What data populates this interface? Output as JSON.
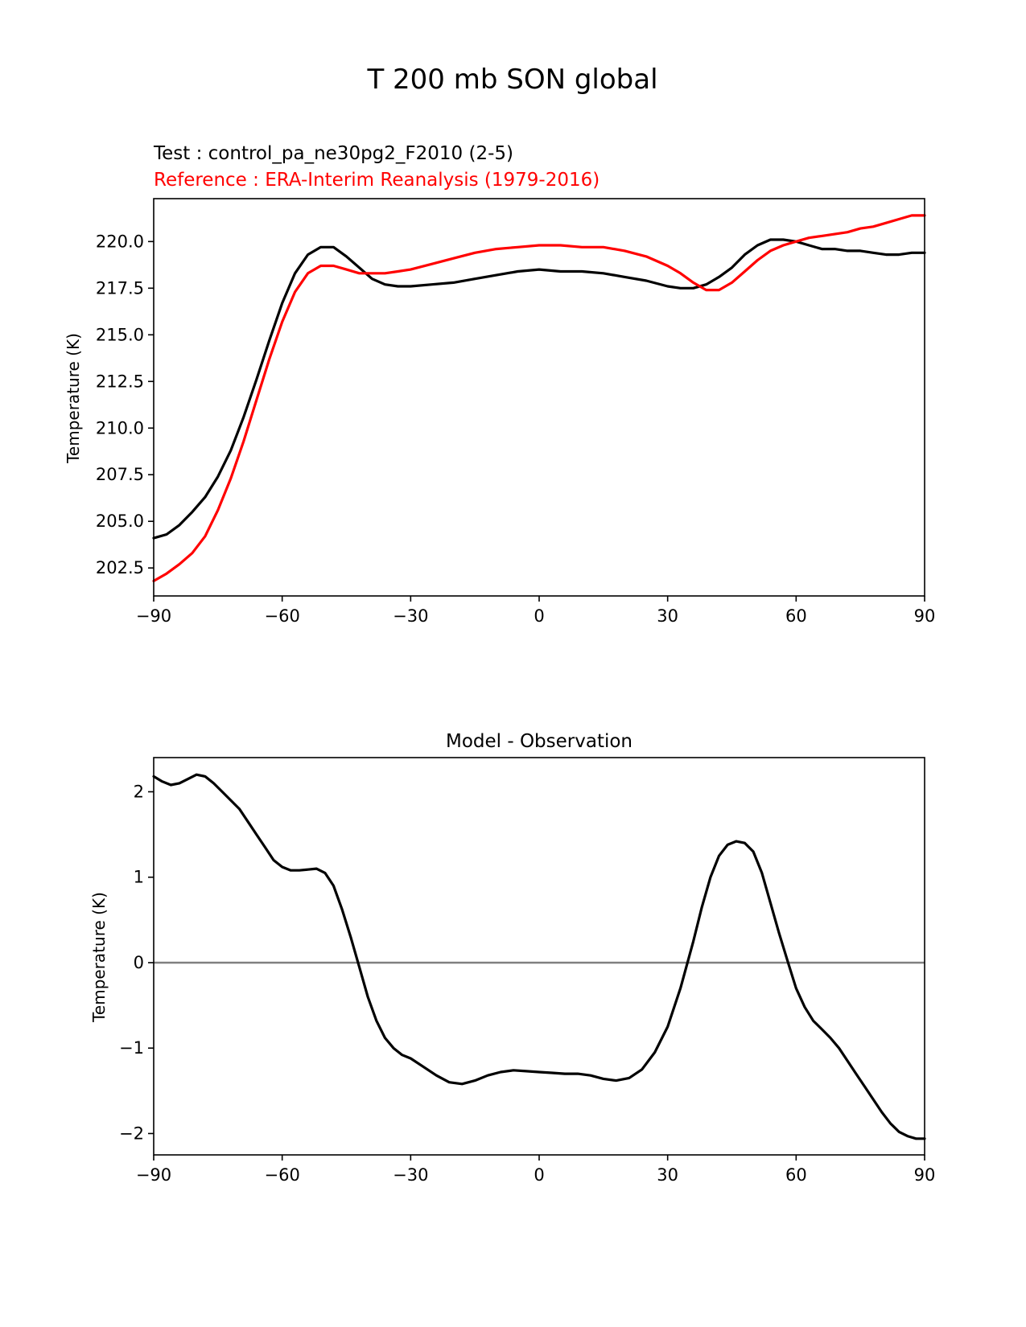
{
  "figure_title": "T 200 mb SON global",
  "chart_data": [
    {
      "type": "line",
      "title_test": "Test : control_pa_ne30pg2_F2010 (2-5)",
      "title_reference": "Reference : ERA-Interim Reanalysis (1979-2016)",
      "xlabel": "",
      "ylabel": "Temperature (K)",
      "xlim": [
        -90,
        90
      ],
      "ylim": [
        201.0,
        222.3
      ],
      "xticks": [
        -90,
        -60,
        -30,
        0,
        30,
        60,
        90
      ],
      "xtick_labels": [
        "−90",
        "−60",
        "−30",
        "0",
        "30",
        "60",
        "90"
      ],
      "yticks": [
        202.5,
        205.0,
        207.5,
        210.0,
        212.5,
        215.0,
        217.5,
        220.0
      ],
      "ytick_labels": [
        "202.5",
        "205.0",
        "207.5",
        "210.0",
        "212.5",
        "215.0",
        "217.5",
        "220.0"
      ],
      "grid": false,
      "series": [
        {
          "role": "test",
          "color": "#000000",
          "x": [
            -90,
            -87,
            -84,
            -81,
            -78,
            -75,
            -72,
            -69,
            -66,
            -63,
            -60,
            -57,
            -54,
            -51,
            -48,
            -45,
            -42,
            -39,
            -36,
            -33,
            -30,
            -25,
            -20,
            -15,
            -10,
            -5,
            0,
            5,
            10,
            15,
            20,
            25,
            30,
            33,
            36,
            39,
            42,
            45,
            48,
            51,
            54,
            57,
            60,
            63,
            66,
            69,
            72,
            75,
            78,
            81,
            84,
            87,
            90
          ],
          "y": [
            204.1,
            204.3,
            204.8,
            205.5,
            206.3,
            207.4,
            208.8,
            210.6,
            212.6,
            214.7,
            216.7,
            218.3,
            219.3,
            219.7,
            219.7,
            219.2,
            218.6,
            218.0,
            217.7,
            217.6,
            217.6,
            217.7,
            217.8,
            218.0,
            218.2,
            218.4,
            218.5,
            218.4,
            218.4,
            218.3,
            218.1,
            217.9,
            217.6,
            217.5,
            217.5,
            217.7,
            218.1,
            218.6,
            219.3,
            219.8,
            220.1,
            220.1,
            220.0,
            219.8,
            219.6,
            219.6,
            219.5,
            219.5,
            219.4,
            219.3,
            219.3,
            219.4,
            219.4
          ]
        },
        {
          "role": "reference",
          "color": "#ff0000",
          "x": [
            -90,
            -87,
            -84,
            -81,
            -78,
            -75,
            -72,
            -69,
            -66,
            -63,
            -60,
            -57,
            -54,
            -51,
            -48,
            -45,
            -42,
            -39,
            -36,
            -33,
            -30,
            -25,
            -20,
            -15,
            -10,
            -5,
            0,
            5,
            10,
            15,
            20,
            25,
            30,
            33,
            36,
            39,
            42,
            45,
            48,
            51,
            54,
            57,
            60,
            63,
            66,
            69,
            72,
            75,
            78,
            81,
            84,
            87,
            90
          ],
          "y": [
            201.8,
            202.2,
            202.7,
            203.3,
            204.2,
            205.6,
            207.3,
            209.3,
            211.5,
            213.7,
            215.7,
            217.3,
            218.3,
            218.7,
            218.7,
            218.5,
            218.3,
            218.3,
            218.3,
            218.4,
            218.5,
            218.8,
            219.1,
            219.4,
            219.6,
            219.7,
            219.8,
            219.8,
            219.7,
            219.7,
            219.5,
            219.2,
            218.7,
            218.3,
            217.8,
            217.4,
            217.4,
            217.8,
            218.4,
            219.0,
            219.5,
            219.8,
            220.0,
            220.2,
            220.3,
            220.4,
            220.5,
            220.7,
            220.8,
            221.0,
            221.2,
            221.4,
            221.4
          ]
        }
      ]
    },
    {
      "type": "line",
      "title": "Model - Observation",
      "xlabel": "",
      "ylabel": "Temperature (K)",
      "xlim": [
        -90,
        90
      ],
      "ylim": [
        -2.25,
        2.4
      ],
      "xticks": [
        -90,
        -60,
        -30,
        0,
        30,
        60,
        90
      ],
      "xtick_labels": [
        "−90",
        "−60",
        "−30",
        "0",
        "30",
        "60",
        "90"
      ],
      "yticks": [
        -2,
        -1,
        0,
        1,
        2
      ],
      "ytick_labels": [
        "−2",
        "−1",
        "0",
        "1",
        "2"
      ],
      "grid": false,
      "zero_line_color": "#808080",
      "series": [
        {
          "role": "difference",
          "color": "#000000",
          "x": [
            -90,
            -88,
            -86,
            -84,
            -82,
            -80,
            -78,
            -76,
            -74,
            -72,
            -70,
            -68,
            -66,
            -64,
            -62,
            -60,
            -58,
            -56,
            -54,
            -52,
            -50,
            -48,
            -46,
            -44,
            -42,
            -40,
            -38,
            -36,
            -34,
            -32,
            -30,
            -27,
            -24,
            -21,
            -18,
            -15,
            -12,
            -9,
            -6,
            -3,
            0,
            3,
            6,
            9,
            12,
            15,
            18,
            21,
            24,
            27,
            30,
            33,
            36,
            38,
            40,
            42,
            44,
            46,
            48,
            50,
            52,
            54,
            56,
            58,
            60,
            62,
            64,
            66,
            68,
            70,
            72,
            74,
            76,
            78,
            80,
            82,
            84,
            86,
            88,
            90
          ],
          "y": [
            2.18,
            2.12,
            2.08,
            2.1,
            2.15,
            2.2,
            2.18,
            2.1,
            2.0,
            1.9,
            1.8,
            1.65,
            1.5,
            1.35,
            1.2,
            1.12,
            1.08,
            1.08,
            1.09,
            1.1,
            1.05,
            0.9,
            0.62,
            0.3,
            -0.05,
            -0.4,
            -0.68,
            -0.88,
            -1.0,
            -1.08,
            -1.12,
            -1.22,
            -1.32,
            -1.4,
            -1.42,
            -1.38,
            -1.32,
            -1.28,
            -1.26,
            -1.27,
            -1.28,
            -1.29,
            -1.3,
            -1.3,
            -1.32,
            -1.36,
            -1.38,
            -1.35,
            -1.25,
            -1.05,
            -0.75,
            -0.3,
            0.25,
            0.65,
            1.0,
            1.25,
            1.38,
            1.42,
            1.4,
            1.3,
            1.05,
            0.7,
            0.35,
            0.02,
            -0.3,
            -0.52,
            -0.68,
            -0.78,
            -0.88,
            -1.0,
            -1.15,
            -1.3,
            -1.45,
            -1.6,
            -1.75,
            -1.88,
            -1.98,
            -2.03,
            -2.06,
            -2.06
          ]
        }
      ]
    }
  ]
}
